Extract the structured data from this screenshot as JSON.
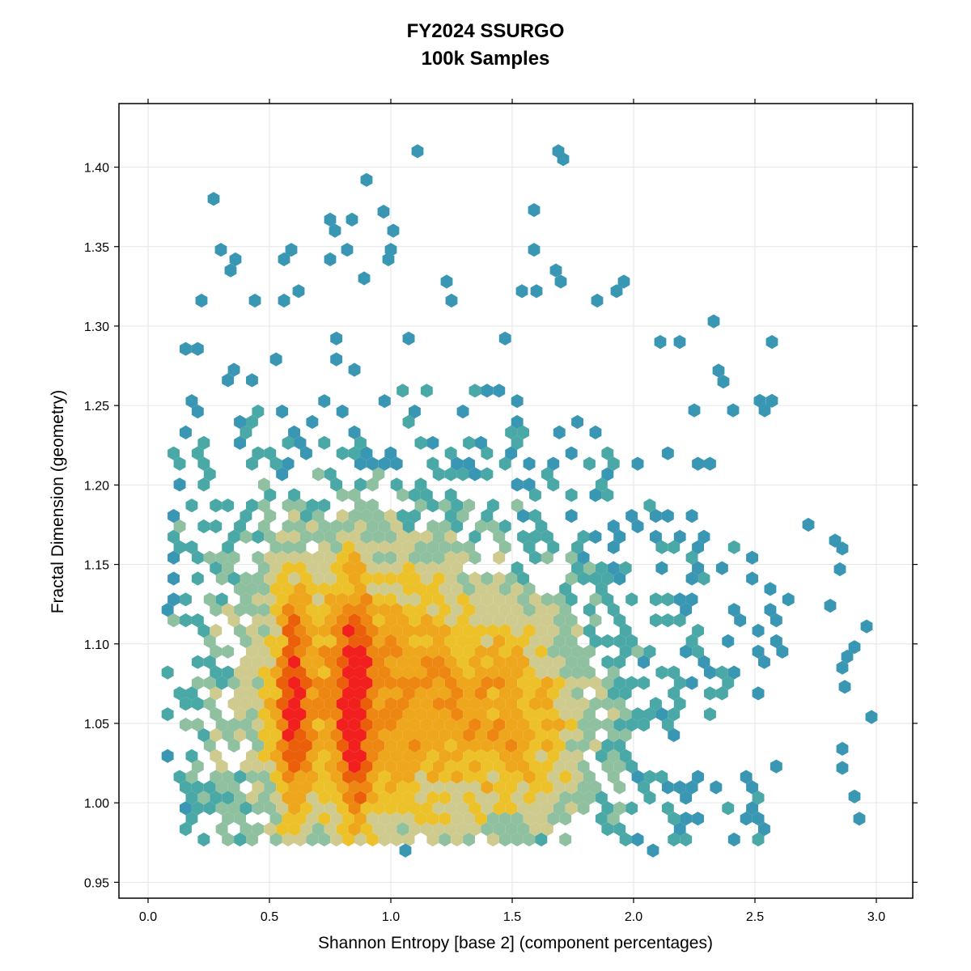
{
  "chart_data": {
    "type": "heatmap",
    "subtype": "hexbin",
    "title": "FY2024 SSURGO",
    "subtitle": "100k Samples",
    "xlabel": "Shannon Entropy [base 2] (component percentages)",
    "ylabel": "Fractal Dimension (geometry)",
    "xlim": [
      -0.12,
      3.15
    ],
    "ylim": [
      0.94,
      1.44
    ],
    "x_ticks": [
      0.0,
      0.5,
      1.0,
      1.5,
      2.0,
      2.5,
      3.0
    ],
    "x_tick_labels": [
      "0.0",
      "0.5",
      "1.0",
      "1.5",
      "2.0",
      "2.5",
      "3.0"
    ],
    "y_ticks": [
      0.95,
      1.0,
      1.05,
      1.1,
      1.15,
      1.2,
      1.25,
      1.3,
      1.35,
      1.4
    ],
    "y_tick_labels": [
      "0.95",
      "1.00",
      "1.05",
      "1.10",
      "1.15",
      "1.20",
      "1.25",
      "1.30",
      "1.35",
      "1.40"
    ],
    "grid": true,
    "legend": "none",
    "color_scale": [
      "#3a97b4",
      "#4aa9a6",
      "#8fc1a0",
      "#cfcb8f",
      "#ecc12a",
      "#eea61c",
      "#ee8612",
      "#eb5f0a",
      "#f21f1f"
    ],
    "density_profile": {
      "x_range": [
        0.07,
        2.9
      ],
      "y_range": [
        0.975,
        1.3
      ],
      "peak_ridges_x": [
        0.6,
        0.85
      ],
      "peak_y": [
        1.0,
        1.12
      ],
      "secondary_mass_x": [
        1.2,
        1.9
      ]
    },
    "outliers": [
      {
        "x": 1.11,
        "y": 1.41
      },
      {
        "x": 1.69,
        "y": 1.41
      },
      {
        "x": 1.71,
        "y": 1.405
      },
      {
        "x": 0.27,
        "y": 1.38
      },
      {
        "x": 0.9,
        "y": 1.392
      },
      {
        "x": 0.97,
        "y": 1.372
      },
      {
        "x": 1.59,
        "y": 1.373
      },
      {
        "x": 0.75,
        "y": 1.367
      },
      {
        "x": 0.84,
        "y": 1.367
      },
      {
        "x": 1.01,
        "y": 1.36
      },
      {
        "x": 0.77,
        "y": 1.36
      },
      {
        "x": 0.3,
        "y": 1.348
      },
      {
        "x": 0.59,
        "y": 1.348
      },
      {
        "x": 1.0,
        "y": 1.348
      },
      {
        "x": 1.59,
        "y": 1.348
      },
      {
        "x": 0.82,
        "y": 1.348
      },
      {
        "x": 0.36,
        "y": 1.342
      },
      {
        "x": 0.56,
        "y": 1.342
      },
      {
        "x": 0.75,
        "y": 1.342
      },
      {
        "x": 0.99,
        "y": 1.342
      },
      {
        "x": 0.34,
        "y": 1.335
      },
      {
        "x": 1.68,
        "y": 1.335
      },
      {
        "x": 0.89,
        "y": 1.33
      },
      {
        "x": 1.7,
        "y": 1.328
      },
      {
        "x": 1.23,
        "y": 1.328
      },
      {
        "x": 1.96,
        "y": 1.328
      },
      {
        "x": 1.93,
        "y": 1.322
      },
      {
        "x": 1.54,
        "y": 1.322
      },
      {
        "x": 1.6,
        "y": 1.322
      },
      {
        "x": 1.25,
        "y": 1.316
      },
      {
        "x": 1.85,
        "y": 1.316
      },
      {
        "x": 0.22,
        "y": 1.316
      },
      {
        "x": 0.44,
        "y": 1.316
      },
      {
        "x": 0.56,
        "y": 1.316
      },
      {
        "x": 0.62,
        "y": 1.322
      },
      {
        "x": 2.33,
        "y": 1.303
      },
      {
        "x": 2.57,
        "y": 1.29
      },
      {
        "x": 2.19,
        "y": 1.29
      },
      {
        "x": 2.11,
        "y": 1.29
      },
      {
        "x": 2.35,
        "y": 1.272
      },
      {
        "x": 2.37,
        "y": 1.265
      },
      {
        "x": 2.57,
        "y": 1.253
      },
      {
        "x": 2.52,
        "y": 1.253
      },
      {
        "x": 2.54,
        "y": 1.247
      },
      {
        "x": 2.41,
        "y": 1.247
      },
      {
        "x": 2.25,
        "y": 1.247
      },
      {
        "x": 2.72,
        "y": 1.175
      },
      {
        "x": 2.83,
        "y": 1.165
      },
      {
        "x": 2.86,
        "y": 1.16
      },
      {
        "x": 2.85,
        "y": 1.147
      },
      {
        "x": 2.81,
        "y": 1.124
      },
      {
        "x": 2.96,
        "y": 1.111
      },
      {
        "x": 2.91,
        "y": 1.098
      },
      {
        "x": 2.88,
        "y": 1.092
      },
      {
        "x": 2.86,
        "y": 1.085
      },
      {
        "x": 2.87,
        "y": 1.073
      },
      {
        "x": 2.98,
        "y": 1.054
      },
      {
        "x": 2.86,
        "y": 1.034
      },
      {
        "x": 2.86,
        "y": 1.022
      },
      {
        "x": 2.93,
        "y": 0.99
      },
      {
        "x": 2.91,
        "y": 1.004
      },
      {
        "x": 1.06,
        "y": 0.97
      },
      {
        "x": 2.08,
        "y": 0.97
      }
    ]
  }
}
